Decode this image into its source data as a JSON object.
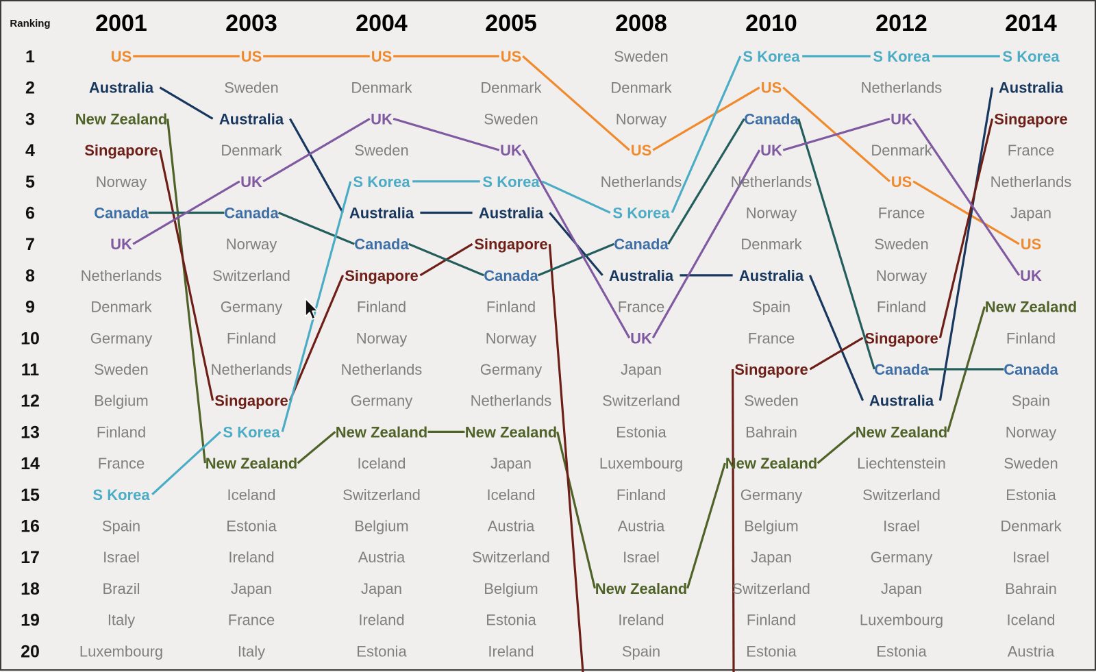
{
  "chart_data": {
    "type": "bump",
    "ranking_header": "Ranking",
    "years": [
      "2001",
      "2003",
      "2004",
      "2005",
      "2008",
      "2010",
      "2012",
      "2014"
    ],
    "ranks": [
      1,
      2,
      3,
      4,
      5,
      6,
      7,
      8,
      9,
      10,
      11,
      12,
      13,
      14,
      15,
      16,
      17,
      18,
      19,
      20
    ],
    "columns": [
      [
        "US",
        "Australia",
        "New Zealand",
        "Singapore",
        "Norway",
        "Canada",
        "UK",
        "Netherlands",
        "Denmark",
        "Germany",
        "Sweden",
        "Belgium",
        "Finland",
        "France",
        "S Korea",
        "Spain",
        "Israel",
        "Brazil",
        "Italy",
        "Luxembourg"
      ],
      [
        "US",
        "Sweden",
        "Australia",
        "Denmark",
        "UK",
        "Canada",
        "Norway",
        "Switzerland",
        "Germany",
        "Finland",
        "Netherlands",
        "Singapore",
        "S Korea",
        "New Zealand",
        "Iceland",
        "Estonia",
        "Ireland",
        "Japan",
        "France",
        "Italy"
      ],
      [
        "US",
        "Denmark",
        "UK",
        "Sweden",
        "S Korea",
        "Australia",
        "Canada",
        "Singapore",
        "Finland",
        "Norway",
        "Netherlands",
        "Germany",
        "New Zealand",
        "Iceland",
        "Switzerland",
        "Belgium",
        "Austria",
        "Japan",
        "Ireland",
        "Estonia"
      ],
      [
        "US",
        "Denmark",
        "Sweden",
        "UK",
        "S Korea",
        "Australia",
        "Singapore",
        "Canada",
        "Finland",
        "Norway",
        "Germany",
        "Netherlands",
        "New Zealand",
        "Japan",
        "Iceland",
        "Austria",
        "Switzerland",
        "Belgium",
        "Estonia",
        "Ireland"
      ],
      [
        "Sweden",
        "Denmark",
        "Norway",
        "US",
        "Netherlands",
        "S Korea",
        "Canada",
        "Australia",
        "France",
        "UK",
        "Japan",
        "Switzerland",
        "Estonia",
        "Luxembourg",
        "Finland",
        "Austria",
        "Israel",
        "New Zealand",
        "Ireland",
        "Spain"
      ],
      [
        "S Korea",
        "US",
        "Canada",
        "UK",
        "Netherlands",
        "Norway",
        "Denmark",
        "Australia",
        "Spain",
        "France",
        "Singapore",
        "Sweden",
        "Bahrain",
        "New Zealand",
        "Germany",
        "Belgium",
        "Japan",
        "Switzerland",
        "Finland",
        "Estonia"
      ],
      [
        "S Korea",
        "Netherlands",
        "UK",
        "Denmark",
        "US",
        "France",
        "Sweden",
        "Norway",
        "Finland",
        "Singapore",
        "Canada",
        "Australia",
        "New Zealand",
        "Liechtenstein",
        "Switzerland",
        "Israel",
        "Germany",
        "Japan",
        "Luxembourg",
        "Estonia"
      ],
      [
        "S Korea",
        "Australia",
        "Singapore",
        "France",
        "Netherlands",
        "Japan",
        "US",
        "UK",
        "New Zealand",
        "Finland",
        "Canada",
        "Spain",
        "Norway",
        "Sweden",
        "Estonia",
        "Denmark",
        "Israel",
        "Bahrain",
        "Iceland",
        "Austria"
      ]
    ],
    "highlighted": [
      {
        "name": "US",
        "color": "#ef8a2e"
      },
      {
        "name": "Australia",
        "color": "#17375e"
      },
      {
        "name": "New Zealand",
        "color": "#4f6228"
      },
      {
        "name": "Singapore",
        "color": "#6d1f17"
      },
      {
        "name": "Canada",
        "color": "#3d6fa6"
      },
      {
        "name": "UK",
        "color": "#7f5aa1"
      },
      {
        "name": "S Korea",
        "color": "#4bacc6"
      }
    ],
    "line_colors": {
      "Canada": "#235e5c"
    },
    "other_color": "#7f7f7f",
    "offchart_below": [
      "Singapore"
    ]
  }
}
